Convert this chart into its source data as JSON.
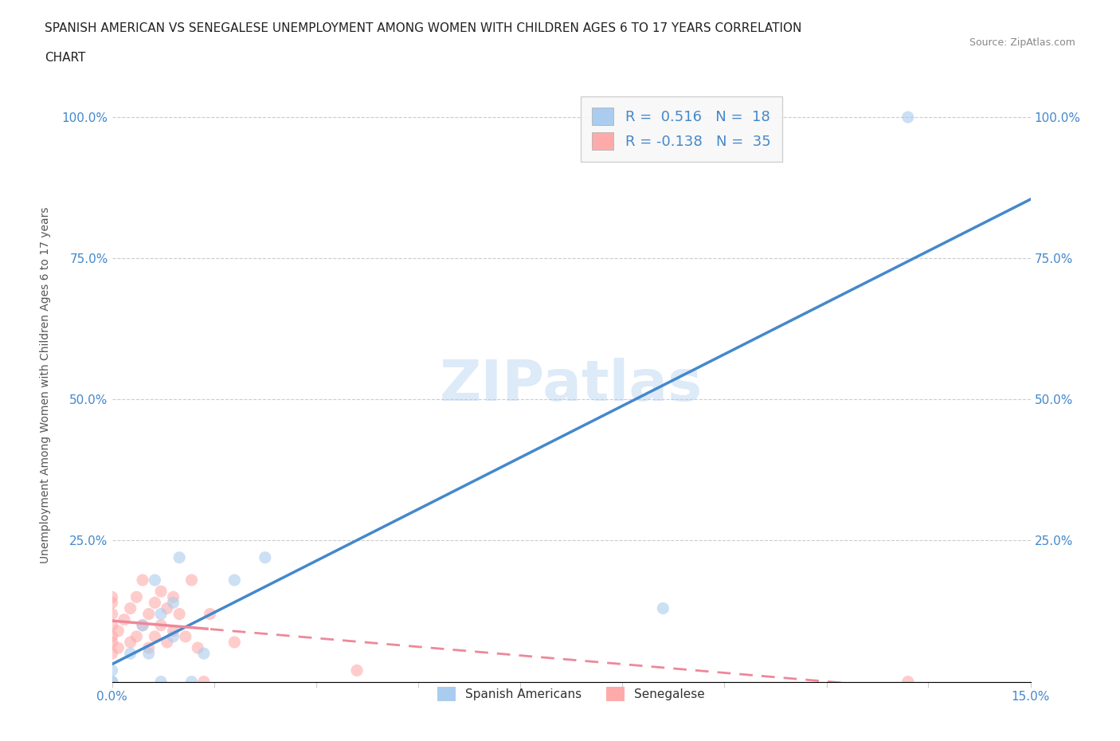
{
  "title_line1": "SPANISH AMERICAN VS SENEGALESE UNEMPLOYMENT AMONG WOMEN WITH CHILDREN AGES 6 TO 17 YEARS CORRELATION",
  "title_line2": "CHART",
  "source": "Source: ZipAtlas.com",
  "ylabel": "Unemployment Among Women with Children Ages 6 to 17 years",
  "xlim": [
    0.0,
    0.15
  ],
  "ylim": [
    0.0,
    1.05
  ],
  "x_ticks": [
    0.0,
    0.0167,
    0.0333,
    0.05,
    0.0667,
    0.0833,
    0.1,
    0.1167,
    0.1333,
    0.15
  ],
  "y_ticks": [
    0.0,
    0.25,
    0.5,
    0.75,
    1.0
  ],
  "grid_color": "#cccccc",
  "background_color": "#ffffff",
  "watermark": "ZIPatlas",
  "watermark_color": "#aaccee",
  "R_spanish": 0.516,
  "N_spanish": 18,
  "R_senegalese": -0.138,
  "N_senegalese": 35,
  "spanish_color": "#aaccee",
  "senegalese_color": "#ffaaaa",
  "spanish_line_color": "#4488cc",
  "senegalese_line_color": "#ee8899",
  "scatter_alpha": 0.6,
  "marker_size": 120,
  "spanish_points_x": [
    0.0,
    0.0,
    0.0,
    0.003,
    0.005,
    0.006,
    0.007,
    0.008,
    0.008,
    0.01,
    0.01,
    0.011,
    0.013,
    0.015,
    0.02,
    0.025,
    0.09,
    0.13
  ],
  "spanish_points_y": [
    0.0,
    0.0,
    0.02,
    0.05,
    0.1,
    0.05,
    0.18,
    0.12,
    0.0,
    0.08,
    0.14,
    0.22,
    0.0,
    0.05,
    0.18,
    0.22,
    0.13,
    1.0
  ],
  "senegalese_points_x": [
    0.0,
    0.0,
    0.0,
    0.0,
    0.0,
    0.0,
    0.0,
    0.001,
    0.001,
    0.002,
    0.003,
    0.003,
    0.004,
    0.004,
    0.005,
    0.005,
    0.006,
    0.006,
    0.007,
    0.007,
    0.008,
    0.008,
    0.009,
    0.009,
    0.01,
    0.01,
    0.011,
    0.012,
    0.013,
    0.014,
    0.015,
    0.016,
    0.02,
    0.04,
    0.13
  ],
  "senegalese_points_y": [
    0.05,
    0.07,
    0.08,
    0.1,
    0.12,
    0.14,
    0.15,
    0.06,
    0.09,
    0.11,
    0.07,
    0.13,
    0.08,
    0.15,
    0.1,
    0.18,
    0.06,
    0.12,
    0.08,
    0.14,
    0.1,
    0.16,
    0.07,
    0.13,
    0.09,
    0.15,
    0.12,
    0.08,
    0.18,
    0.06,
    0.0,
    0.12,
    0.07,
    0.02,
    0.0
  ]
}
